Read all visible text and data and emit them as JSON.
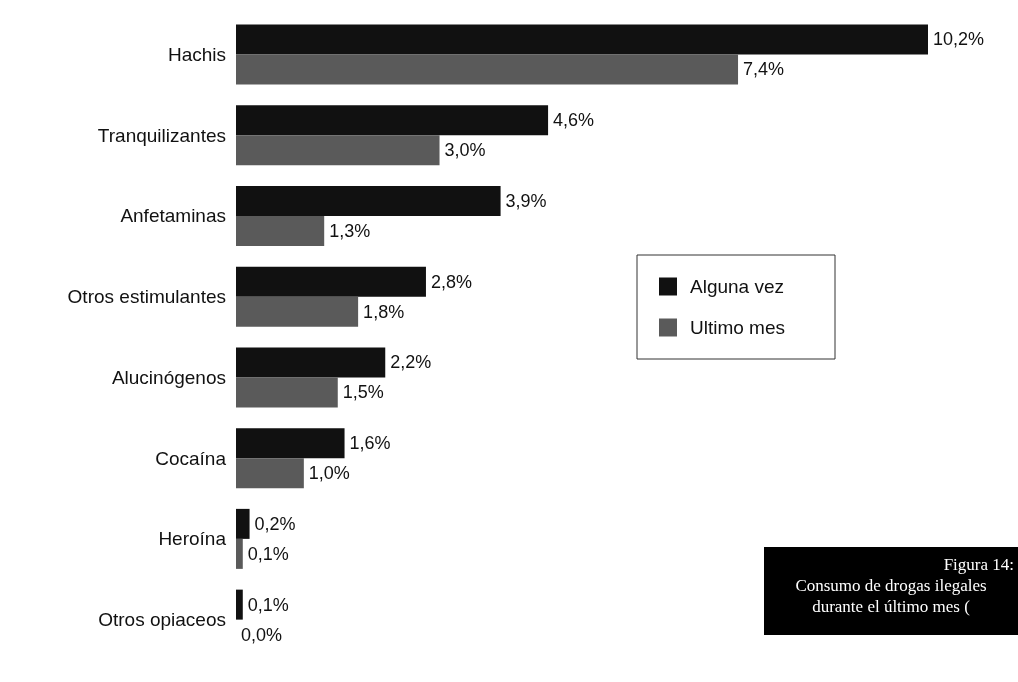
{
  "chart_data": {
    "type": "bar",
    "orientation": "horizontal",
    "categories": [
      "Hachis",
      "Tranquilizantes",
      "Anfetaminas",
      "Otros estimulantes",
      "Alucinógenos",
      "Cocaína",
      "Heroína",
      "Otros opiaceos"
    ],
    "series": [
      {
        "name": "Alguna vez",
        "color": "#111111",
        "values": [
          10.2,
          4.6,
          3.9,
          2.8,
          2.2,
          1.6,
          0.2,
          0.1
        ],
        "value_labels": [
          "10,2%",
          "4,6%",
          "3,9%",
          "2,8%",
          "2,2%",
          "1,6%",
          "0,2%",
          "0,1%"
        ]
      },
      {
        "name": "Ultimo mes",
        "color": "#5a5a5a",
        "values": [
          7.4,
          3.0,
          1.3,
          1.8,
          1.5,
          1.0,
          0.1,
          0.0
        ],
        "value_labels": [
          "7,4%",
          "3,0%",
          "1,3%",
          "1,8%",
          "1,5%",
          "1,0%",
          "0,1%",
          "0,0%"
        ]
      }
    ],
    "legend": "right",
    "annotations": [
      "Figura 14:",
      "Consumo de drogas ilegales",
      "durante el último mes ("
    ]
  }
}
